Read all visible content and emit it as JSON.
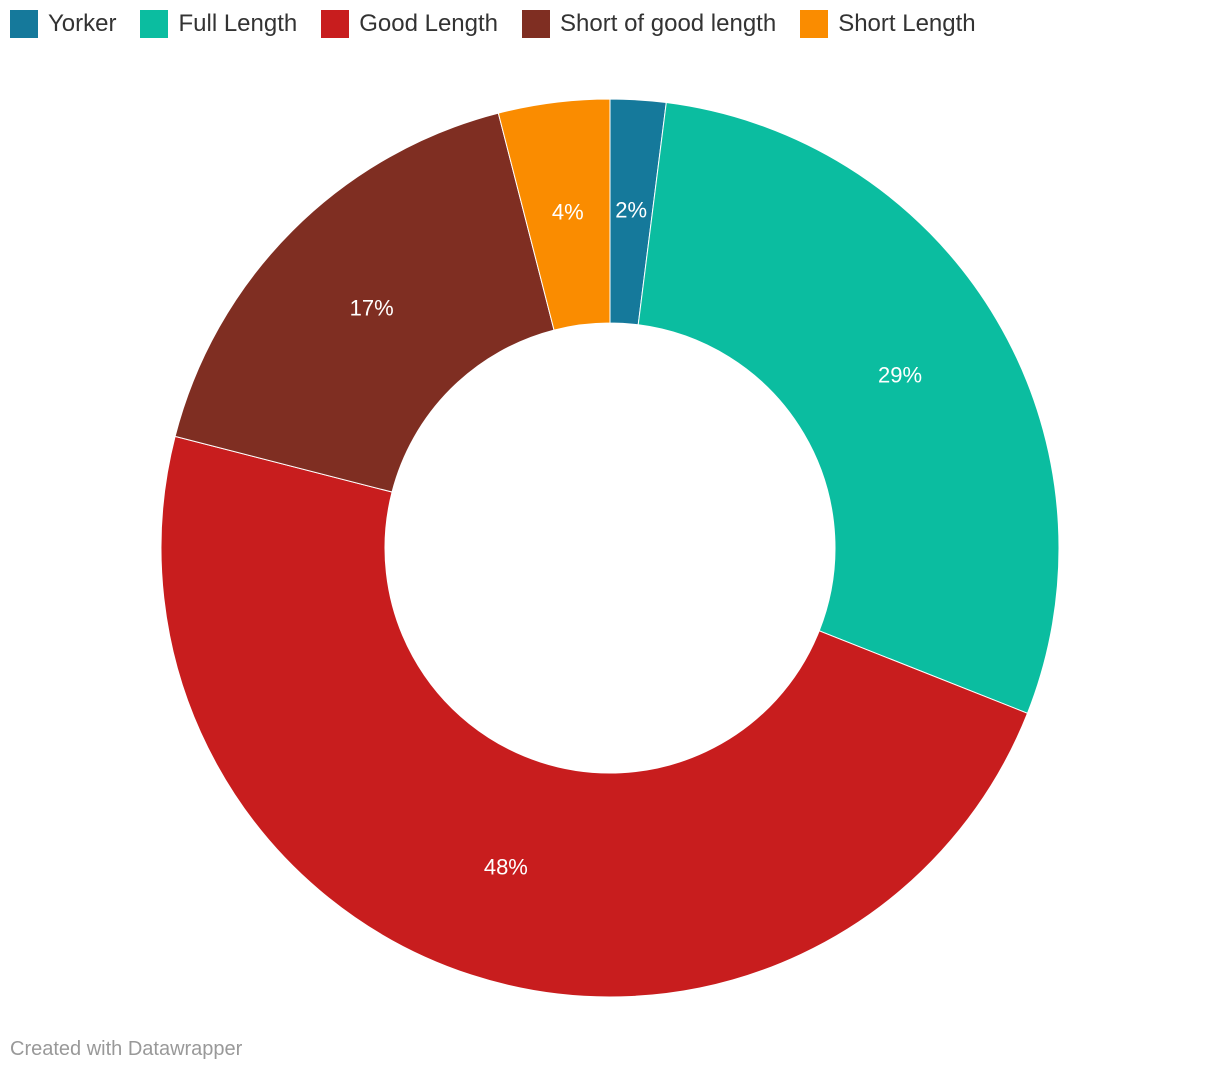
{
  "chart_data": {
    "type": "donut",
    "categories": [
      "Yorker",
      "Full Length",
      "Good Length",
      "Short of good length",
      "Short Length"
    ],
    "values": [
      2,
      29,
      48,
      17,
      4
    ],
    "value_labels": [
      "2%",
      "29%",
      "48%",
      "17%",
      "4%"
    ],
    "colors": [
      "#15799b",
      "#0bbda0",
      "#c81d1e",
      "#7f2e22",
      "#fa8c00"
    ],
    "legend": "top-left"
  },
  "credit": "Created with Datawrapper"
}
